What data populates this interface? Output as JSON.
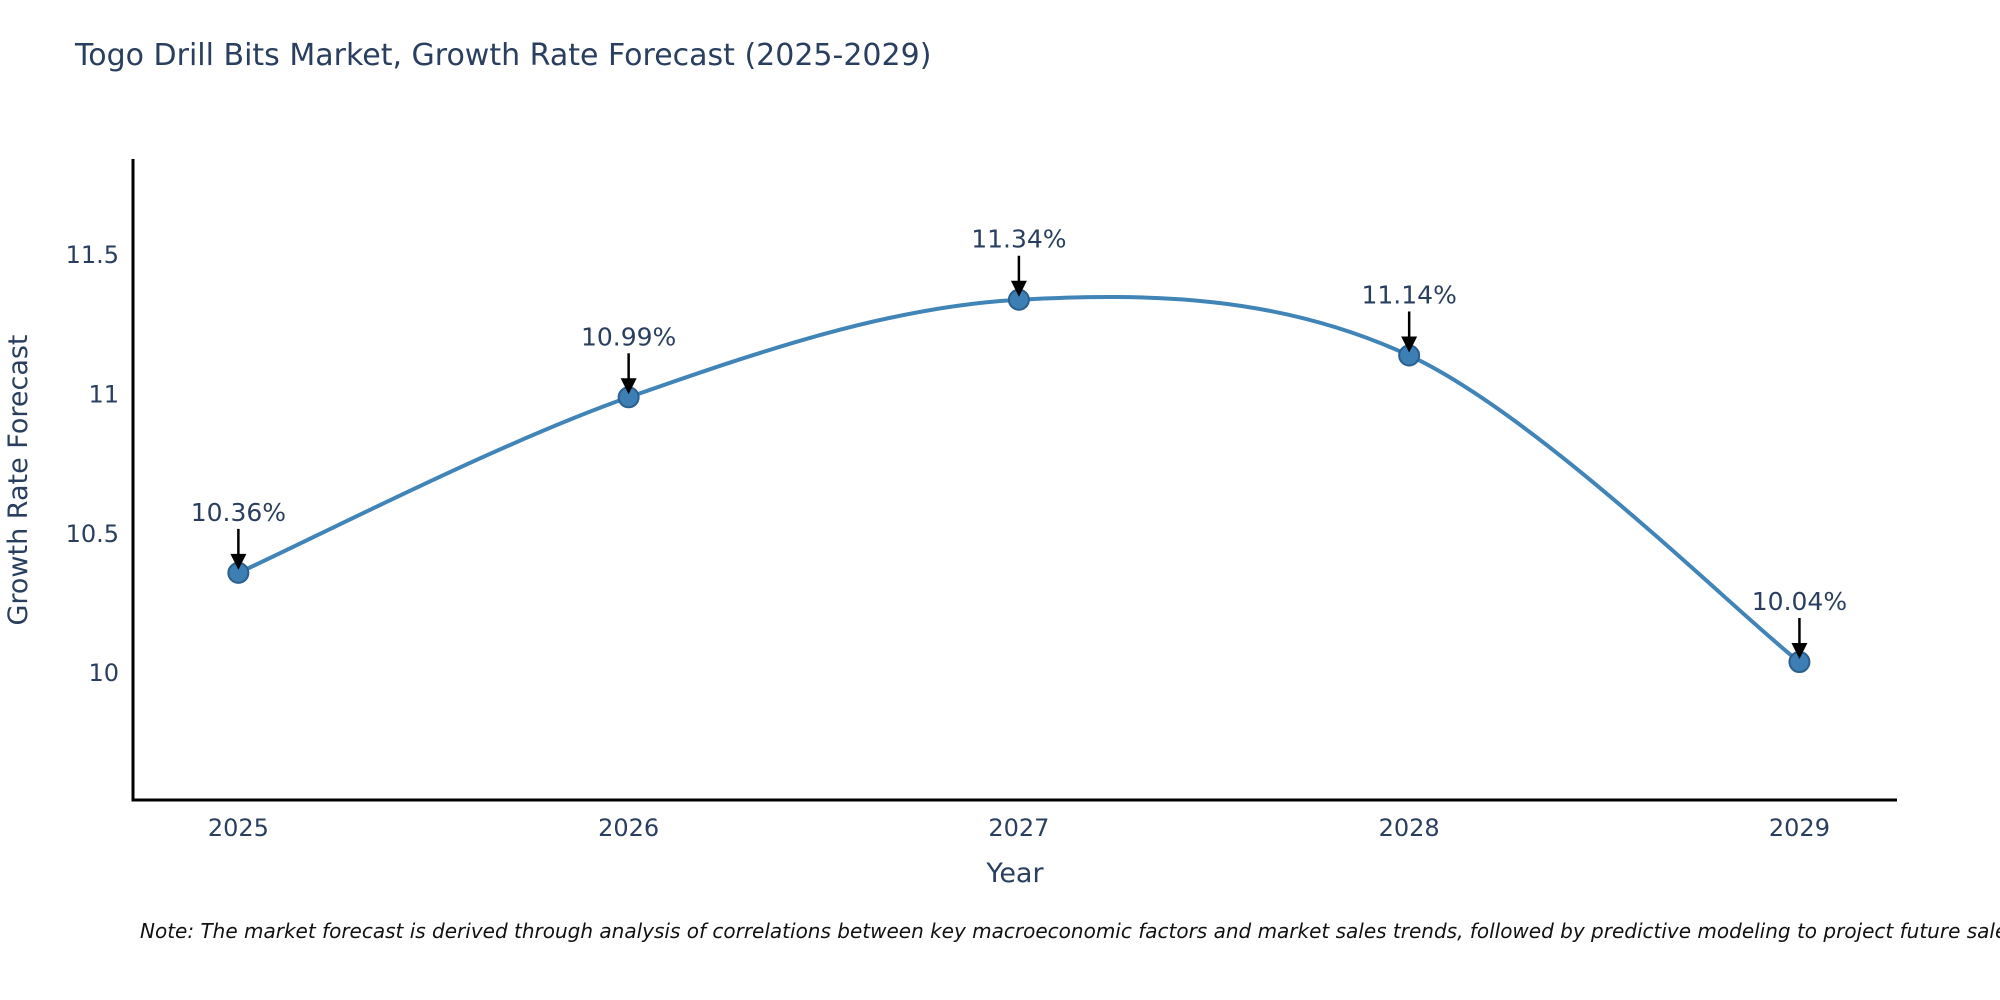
{
  "title": "Togo Drill Bits Market, Growth Rate Forecast (2025-2029)",
  "note": "Note: The market forecast is derived through analysis of correlations between key macroeconomic factors and market sales trends, followed by predictive modeling to project future sales.",
  "chart_data": {
    "type": "line",
    "line_shape": "spline",
    "title": "Togo Drill Bits Market, Growth Rate Forecast (2025-2029)",
    "xlabel": "Year",
    "ylabel": "Growth Rate Forecast",
    "x": [
      2025,
      2026,
      2027,
      2028,
      2029
    ],
    "values": [
      10.36,
      10.99,
      11.34,
      11.14,
      10.04
    ],
    "labels": [
      "10.36%",
      "10.99%",
      "11.34%",
      "11.14%",
      "10.04%"
    ],
    "xticks": [
      2025,
      2026,
      2027,
      2028,
      2029
    ],
    "yticks": [
      10,
      10.5,
      11,
      11.5
    ],
    "xlim": [
      2024.73,
      2029.25
    ],
    "ylim": [
      9.545,
      11.845
    ],
    "grid": false,
    "legend": "none",
    "line_color": "#4184b8",
    "marker_color": "#3d7eb4",
    "marker_line_color": "#2b5f8e",
    "axis_color": "#000000",
    "text_color": "#2a3f5f",
    "annotation_color": "#2a3f5f",
    "arrow_color": "#000000"
  }
}
